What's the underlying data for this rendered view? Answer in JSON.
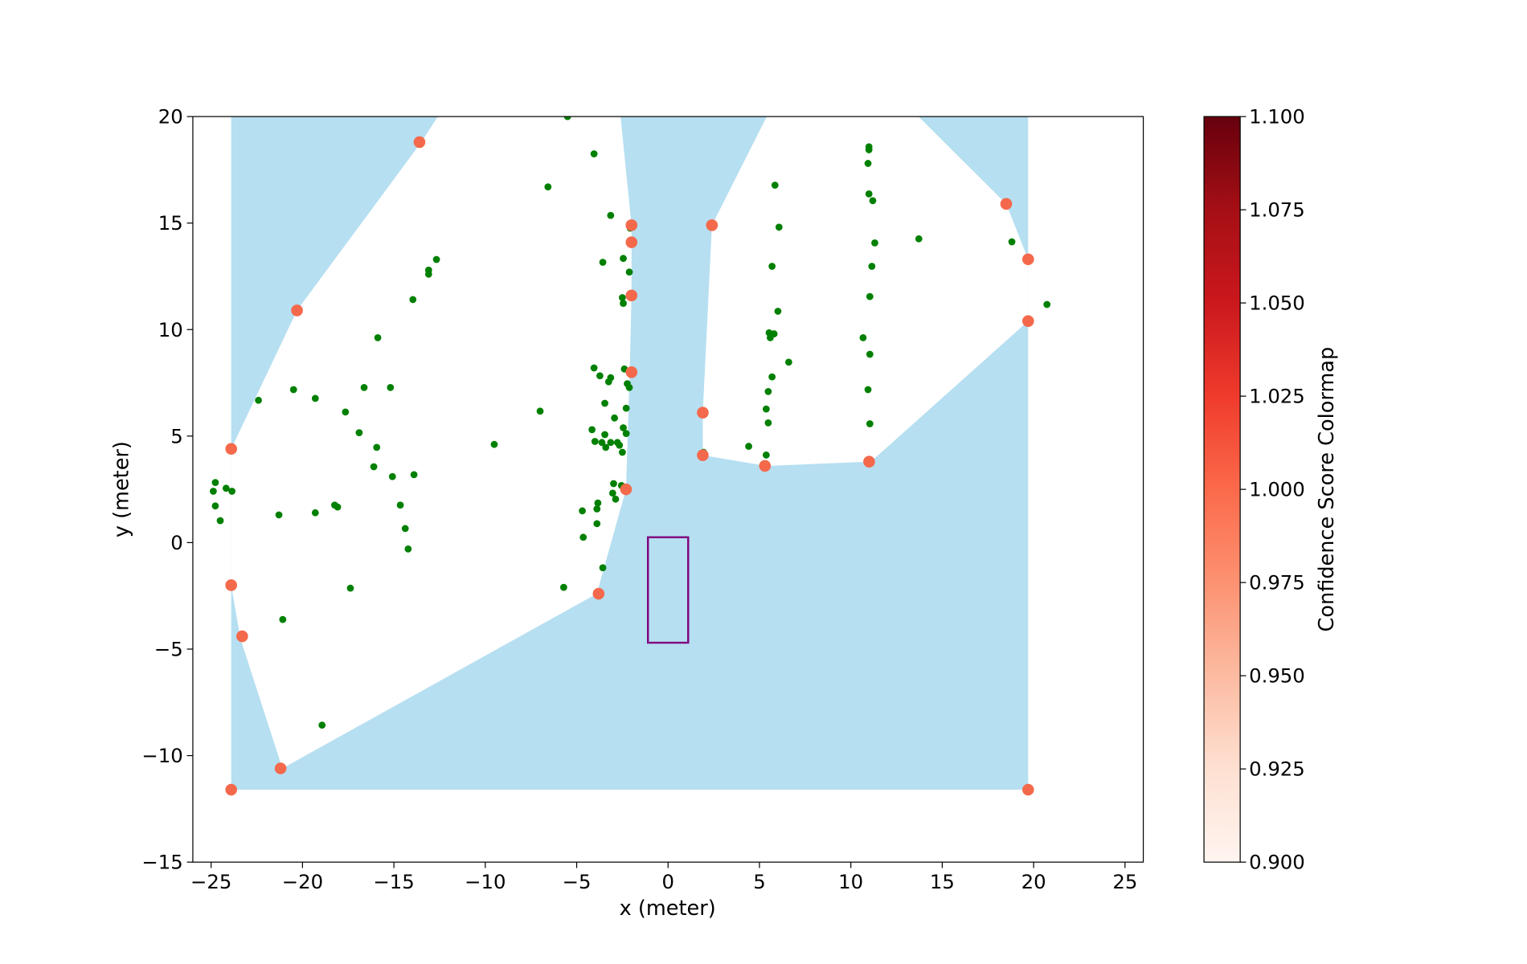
{
  "chart_data": {
    "type": "scatter",
    "xlabel": "x (meter)",
    "ylabel": "y (meter)",
    "xlim": [
      -26,
      26
    ],
    "ylim": [
      -15,
      20
    ],
    "xticks": [
      -25,
      -20,
      -15,
      -10,
      -5,
      0,
      5,
      10,
      15,
      20,
      25
    ],
    "yticks": [
      -15,
      -10,
      -5,
      0,
      5,
      10,
      15,
      20
    ],
    "grid": false,
    "colors": {
      "free_space": "#b6dff1",
      "obstacle_points": "#008000",
      "hull_points": "#f4694c",
      "vehicle_box": "#800080"
    },
    "free_space_bounds": {
      "x": [
        -23.9,
        19.7
      ],
      "y": [
        -11.6,
        20
      ]
    },
    "occupied_regions": [
      [
        [
          -23.9,
          4.4
        ],
        [
          -20.3,
          10.9
        ],
        [
          -13.5,
          18.8
        ],
        [
          -12.6,
          20
        ],
        [
          -2.6,
          20
        ],
        [
          -2.0,
          14.9
        ],
        [
          -2.0,
          11.6
        ],
        [
          -2.1,
          8.0
        ],
        [
          -2.3,
          2.5
        ],
        [
          -3.9,
          -2.4
        ],
        [
          -21.1,
          -10.6
        ],
        [
          -23.4,
          -4.5
        ],
        [
          -23.9,
          -2.0
        ]
      ],
      [
        [
          1.9,
          4.1
        ],
        [
          1.9,
          6.1
        ],
        [
          2.4,
          14.9
        ],
        [
          5.4,
          20
        ],
        [
          13.7,
          20
        ],
        [
          18.5,
          15.9
        ],
        [
          19.7,
          13.3
        ],
        [
          19.7,
          10.4
        ],
        [
          11.1,
          3.8
        ],
        [
          5.4,
          3.6
        ]
      ]
    ],
    "vehicle_box": {
      "x": [
        -1.1,
        1.1
      ],
      "y": [
        -4.7,
        0.25
      ]
    },
    "hull_points": [
      [
        -13.6,
        18.8
      ],
      [
        -20.3,
        10.9
      ],
      [
        -23.9,
        4.4
      ],
      [
        -23.9,
        -2.0
      ],
      [
        -23.3,
        -4.4
      ],
      [
        -21.2,
        -10.6
      ],
      [
        -23.9,
        -11.6
      ],
      [
        -3.8,
        -2.4
      ],
      [
        -2.3,
        2.5
      ],
      [
        -2.0,
        8.0
      ],
      [
        -2.0,
        11.6
      ],
      [
        -2.0,
        14.1
      ],
      [
        -2.0,
        14.9
      ],
      [
        2.4,
        14.9
      ],
      [
        1.9,
        6.1
      ],
      [
        1.9,
        4.1
      ],
      [
        5.3,
        3.6
      ],
      [
        11.0,
        3.8
      ],
      [
        19.7,
        10.4
      ],
      [
        19.7,
        13.3
      ],
      [
        18.5,
        15.9
      ],
      [
        19.7,
        -11.6
      ]
    ],
    "hull_point_score": 1.0,
    "obstacle_points": [
      [
        -5.5,
        20
      ],
      [
        -4.05,
        18.25
      ],
      [
        -6.57,
        16.7
      ],
      [
        -3.14,
        15.36
      ],
      [
        -2.07,
        14.76
      ],
      [
        -3.57,
        13.16
      ],
      [
        -2.45,
        13.34
      ],
      [
        -2.12,
        12.7
      ],
      [
        -2.5,
        11.5
      ],
      [
        -2.45,
        11.23
      ],
      [
        -12.67,
        13.29
      ],
      [
        -13.1,
        12.79
      ],
      [
        -13.1,
        12.6
      ],
      [
        -13.96,
        11.41
      ],
      [
        -15.88,
        9.62
      ],
      [
        -22.41,
        6.68
      ],
      [
        -20.49,
        7.18
      ],
      [
        -19.3,
        6.77
      ],
      [
        -16.63,
        7.28
      ],
      [
        -15.19,
        7.28
      ],
      [
        -17.65,
        6.13
      ],
      [
        -16.9,
        5.16
      ],
      [
        -15.94,
        4.47
      ],
      [
        -9.51,
        4.61
      ],
      [
        -7.0,
        6.17
      ],
      [
        -16.1,
        3.56
      ],
      [
        -15.08,
        3.1
      ],
      [
        -13.9,
        3.19
      ],
      [
        -24.77,
        2.82
      ],
      [
        -24.88,
        2.41
      ],
      [
        -24.18,
        2.55
      ],
      [
        -23.86,
        2.41
      ],
      [
        -24.77,
        1.72
      ],
      [
        -24.5,
        1.03
      ],
      [
        -21.29,
        1.3
      ],
      [
        -19.3,
        1.4
      ],
      [
        -18.24,
        1.76
      ],
      [
        -18.08,
        1.67
      ],
      [
        -14.65,
        1.76
      ],
      [
        -14.38,
        0.66
      ],
      [
        -14.22,
        -0.3
      ],
      [
        -17.38,
        -2.14
      ],
      [
        -21.08,
        -3.61
      ],
      [
        -18.93,
        -8.57
      ],
      [
        -4.05,
        8.2
      ],
      [
        -3.73,
        7.83
      ],
      [
        -3.14,
        7.74
      ],
      [
        -3.25,
        7.55
      ],
      [
        -2.39,
        8.15
      ],
      [
        -2.23,
        7.46
      ],
      [
        -2.12,
        7.28
      ],
      [
        -3.46,
        6.54
      ],
      [
        -2.29,
        6.31
      ],
      [
        -2.93,
        5.85
      ],
      [
        -4.16,
        5.3
      ],
      [
        -2.45,
        5.39
      ],
      [
        -2.29,
        5.12
      ],
      [
        -3.46,
        5.07
      ],
      [
        -4.0,
        4.75
      ],
      [
        -3.62,
        4.7
      ],
      [
        -3.41,
        4.47
      ],
      [
        -3.14,
        4.7
      ],
      [
        -2.77,
        4.7
      ],
      [
        -2.66,
        4.57
      ],
      [
        -2.5,
        4.24
      ],
      [
        -2.98,
        2.77
      ],
      [
        -2.55,
        2.68
      ],
      [
        -3.03,
        2.32
      ],
      [
        -2.87,
        2.04
      ],
      [
        -3.84,
        1.86
      ],
      [
        -3.89,
        1.58
      ],
      [
        -4.69,
        1.49
      ],
      [
        -3.89,
        0.89
      ],
      [
        -4.64,
        0.25
      ],
      [
        -3.57,
        -1.18
      ],
      [
        -5.71,
        -2.1
      ],
      [
        1.94,
        4.24
      ],
      [
        4.41,
        4.52
      ],
      [
        5.37,
        4.11
      ],
      [
        5.85,
        16.78
      ],
      [
        6.07,
        14.81
      ],
      [
        5.69,
        12.97
      ],
      [
        6.01,
        10.86
      ],
      [
        5.53,
        9.85
      ],
      [
        5.8,
        9.8
      ],
      [
        5.59,
        9.62
      ],
      [
        6.6,
        8.47
      ],
      [
        5.69,
        7.78
      ],
      [
        5.48,
        7.09
      ],
      [
        5.37,
        6.27
      ],
      [
        5.48,
        5.62
      ],
      [
        10.99,
        18.58
      ],
      [
        10.99,
        18.44
      ],
      [
        10.94,
        17.8
      ],
      [
        10.99,
        16.37
      ],
      [
        11.2,
        16.05
      ],
      [
        11.31,
        14.07
      ],
      [
        11.15,
        12.97
      ],
      [
        11.04,
        11.55
      ],
      [
        10.67,
        9.62
      ],
      [
        11.04,
        8.84
      ],
      [
        10.94,
        7.18
      ],
      [
        11.04,
        5.58
      ],
      [
        13.72,
        14.26
      ],
      [
        18.81,
        14.12
      ],
      [
        20.73,
        11.18
      ]
    ],
    "colorbar": {
      "label": "Confidence Score Colormap",
      "range": [
        0.9,
        1.1
      ],
      "ticks": [
        "0.900",
        "0.925",
        "0.950",
        "0.975",
        "1.000",
        "1.025",
        "1.050",
        "1.075",
        "1.100"
      ],
      "colormap": "Reds",
      "stops": [
        "#fff5f0",
        "#fee0d2",
        "#fcbba1",
        "#fc9272",
        "#fb6a4a",
        "#ef3b2c",
        "#cb181d",
        "#a50f15",
        "#67000d"
      ]
    }
  }
}
